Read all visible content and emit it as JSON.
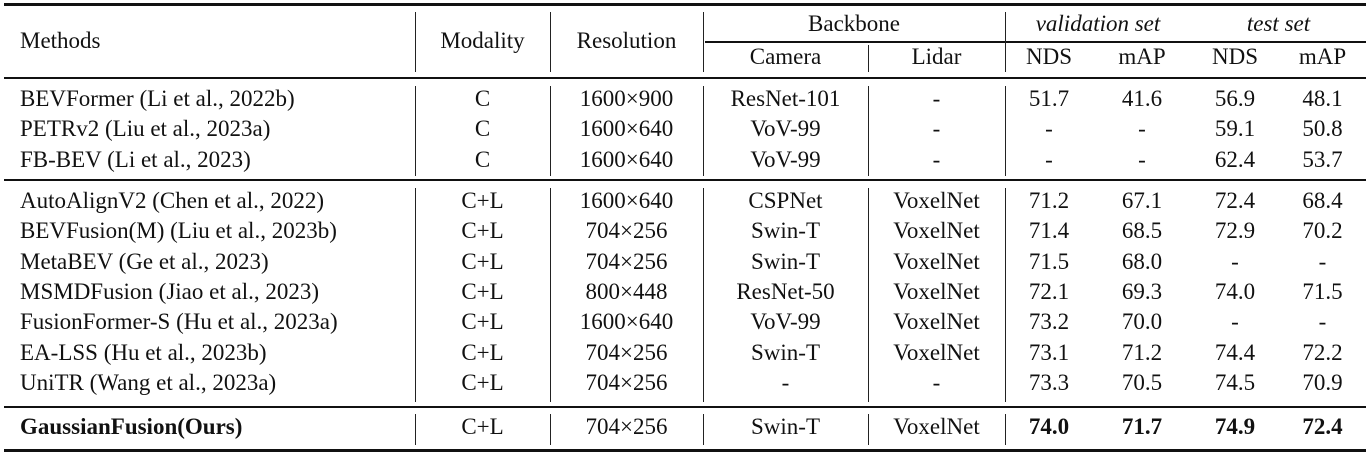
{
  "table": {
    "header": {
      "methods": "Methods",
      "modality": "Modality",
      "resolution": "Resolution",
      "backbone": "Backbone",
      "camera": "Camera",
      "lidar": "Lidar",
      "validation_set": "validation set",
      "test_set": "test set",
      "val_nds": "NDS",
      "val_map": "mAP",
      "test_nds": "NDS",
      "test_map": "mAP"
    },
    "groups": [
      {
        "rows": [
          {
            "method": "BEVFormer (Li et al., 2022b)",
            "modality": "C",
            "resolution": "1600×900",
            "camera": "ResNet-101",
            "lidar": "-",
            "val_nds": "51.7",
            "val_map": "41.6",
            "test_nds": "56.9",
            "test_map": "48.1"
          },
          {
            "method": "PETRv2 (Liu et al., 2023a)",
            "modality": "C",
            "resolution": "1600×640",
            "camera": "VoV-99",
            "lidar": "-",
            "val_nds": "-",
            "val_map": "-",
            "test_nds": "59.1",
            "test_map": "50.8"
          },
          {
            "method": "FB-BEV (Li et al., 2023)",
            "modality": "C",
            "resolution": "1600×640",
            "camera": "VoV-99",
            "lidar": "-",
            "val_nds": "-",
            "val_map": "-",
            "test_nds": "62.4",
            "test_map": "53.7"
          }
        ]
      },
      {
        "rows": [
          {
            "method": "AutoAlignV2 (Chen et al., 2022)",
            "modality": "C+L",
            "resolution": "1600×640",
            "camera": "CSPNet",
            "lidar": "VoxelNet",
            "val_nds": "71.2",
            "val_map": "67.1",
            "test_nds": "72.4",
            "test_map": "68.4"
          },
          {
            "method": "BEVFusion(M) (Liu et al., 2023b)",
            "modality": "C+L",
            "resolution": "704×256",
            "camera": "Swin-T",
            "lidar": "VoxelNet",
            "val_nds": "71.4",
            "val_map": "68.5",
            "test_nds": "72.9",
            "test_map": "70.2"
          },
          {
            "method": "MetaBEV (Ge et al., 2023)",
            "modality": "C+L",
            "resolution": "704×256",
            "camera": "Swin-T",
            "lidar": "VoxelNet",
            "val_nds": "71.5",
            "val_map": "68.0",
            "test_nds": "-",
            "test_map": "-"
          },
          {
            "method": "MSMDFusion (Jiao et al., 2023)",
            "modality": "C+L",
            "resolution": "800×448",
            "camera": "ResNet-50",
            "lidar": "VoxelNet",
            "val_nds": "72.1",
            "val_map": "69.3",
            "test_nds": "74.0",
            "test_map": "71.5"
          },
          {
            "method": "FusionFormer-S (Hu et al., 2023a)",
            "modality": "C+L",
            "resolution": "1600×640",
            "camera": "VoV-99",
            "lidar": "VoxelNet",
            "val_nds": "73.2",
            "val_map": "70.0",
            "test_nds": "-",
            "test_map": "-"
          },
          {
            "method": "EA-LSS (Hu et al., 2023b)",
            "modality": "C+L",
            "resolution": "704×256",
            "camera": "Swin-T",
            "lidar": "VoxelNet",
            "val_nds": "73.1",
            "val_map": "71.2",
            "test_nds": "74.4",
            "test_map": "72.2"
          },
          {
            "method": "UniTR (Wang et al., 2023a)",
            "modality": "C+L",
            "resolution": "704×256",
            "camera": "-",
            "lidar": "-",
            "val_nds": "73.3",
            "val_map": "70.5",
            "test_nds": "74.5",
            "test_map": "70.9"
          }
        ]
      },
      {
        "rows": [
          {
            "method": "GaussianFusion(Ours)",
            "modality": "C+L",
            "resolution": "704×256",
            "camera": "Swin-T",
            "lidar": "VoxelNet",
            "val_nds": "74.0",
            "val_map": "71.7",
            "test_nds": "74.9",
            "test_map": "72.4",
            "bold": true
          }
        ]
      }
    ]
  }
}
